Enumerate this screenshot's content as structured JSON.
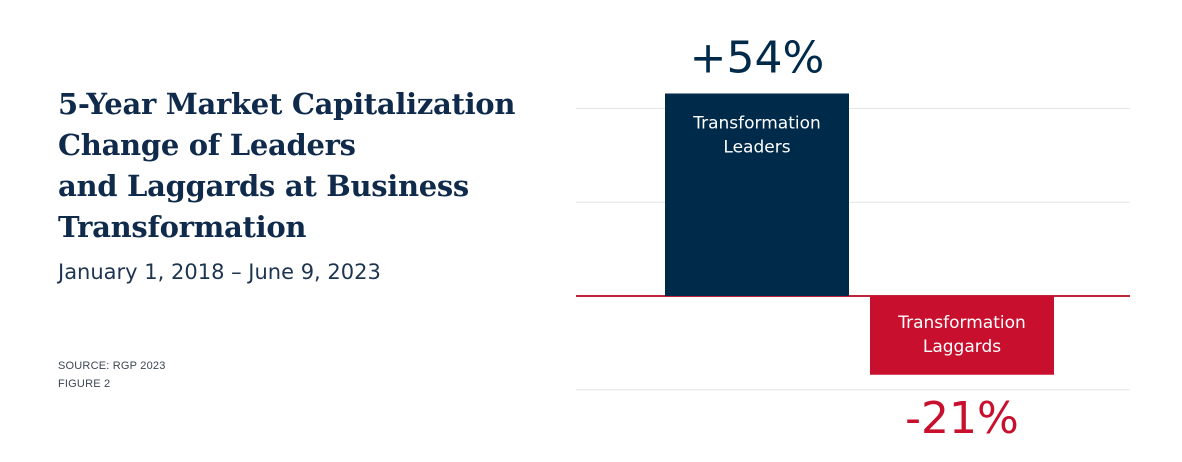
{
  "title_lines": [
    "5-Year Market Capitalization",
    "Change of Leaders",
    "and Laggards at Business",
    "Transformation"
  ],
  "subtitle": "January 1, 2018 – June 9, 2023",
  "source": "SOURCE: RGP 2023",
  "figure": "FIGURE 2",
  "colors": {
    "leaders": "#002a4a",
    "laggards": "#c8102e",
    "baseline": "#c0283a",
    "grid": "#e6e6e6"
  },
  "chart_data": {
    "type": "bar",
    "categories": [
      "Transformation Leaders",
      "Transformation Laggards"
    ],
    "category_label_lines": [
      [
        "Transformation",
        "Leaders"
      ],
      [
        "Transformation",
        "Laggards"
      ]
    ],
    "values": [
      54,
      -21
    ],
    "value_labels": [
      "+54%",
      "-21%"
    ],
    "ylim": [
      -25,
      55
    ],
    "gridlines": [
      50,
      25,
      -25
    ],
    "grid": true,
    "legend": "none"
  }
}
